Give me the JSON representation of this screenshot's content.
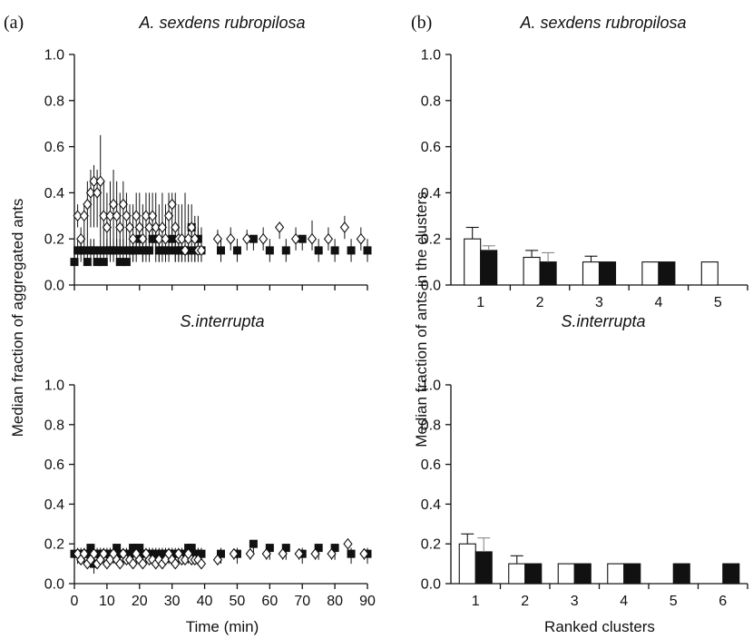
{
  "figure": {
    "panel_a_label": "(a)",
    "panel_b_label": "(b)",
    "a_ylabel": "Median fraction of aggregated ants",
    "a_xlabel": "Time (min)",
    "b_ylabel": "Median fraction of ants in the clusters",
    "b_xlabel": "Ranked clusters"
  },
  "chart_data": [
    {
      "id": "a-top",
      "type": "scatter",
      "title": "A. sexdens rubropilosa",
      "xlabel": "",
      "ylabel": "",
      "xlim": [
        0,
        90
      ],
      "ylim": [
        0,
        1.0
      ],
      "xticks": [
        "0",
        "10",
        "20",
        "30",
        "40",
        "50",
        "60",
        "70",
        "80",
        "90"
      ],
      "yticks": [
        "0.0",
        "0.2",
        "0.4",
        "0.6",
        "0.8",
        "1.0"
      ],
      "show_xtick_labels": false,
      "series": [
        {
          "marker": "open-diamond",
          "x": [
            1,
            2,
            3,
            4,
            5,
            6,
            7,
            8,
            9,
            10,
            11,
            12,
            13,
            14,
            15,
            16,
            17,
            18,
            19,
            20,
            21,
            22,
            23,
            24,
            25,
            26,
            27,
            28,
            29,
            30,
            31,
            32,
            33,
            34,
            35,
            36,
            37,
            38,
            39,
            44,
            48,
            53,
            58,
            63,
            68,
            73,
            78,
            83,
            88
          ],
          "y": [
            0.3,
            0.2,
            0.3,
            0.35,
            0.4,
            0.45,
            0.4,
            0.45,
            0.3,
            0.25,
            0.3,
            0.35,
            0.3,
            0.25,
            0.35,
            0.3,
            0.25,
            0.2,
            0.3,
            0.25,
            0.2,
            0.3,
            0.25,
            0.3,
            0.25,
            0.2,
            0.25,
            0.2,
            0.3,
            0.35,
            0.25,
            0.2,
            0.2,
            0.15,
            0.2,
            0.25,
            0.2,
            0.15,
            0.15,
            0.2,
            0.2,
            0.2,
            0.2,
            0.25,
            0.2,
            0.2,
            0.2,
            0.25,
            0.2
          ],
          "err_hi": [
            0.35,
            0.25,
            0.35,
            0.45,
            0.5,
            0.52,
            0.5,
            0.65,
            0.45,
            0.4,
            0.45,
            0.5,
            0.45,
            0.4,
            0.45,
            0.4,
            0.35,
            0.35,
            0.4,
            0.4,
            0.35,
            0.4,
            0.4,
            0.4,
            0.4,
            0.35,
            0.4,
            0.35,
            0.4,
            0.4,
            0.4,
            0.35,
            0.35,
            0.4,
            0.35,
            0.35,
            0.3,
            0.3,
            0.25,
            0.24,
            0.25,
            0.24,
            0.25,
            0.25,
            0.25,
            0.28,
            0.25,
            0.3,
            0.25
          ],
          "err_lo": [
            0.25,
            0.15,
            0.2,
            0.2,
            0.25,
            0.25,
            0.25,
            0.2,
            0.15,
            0.15,
            0.15,
            0.15,
            0.15,
            0.15,
            0.15,
            0.15,
            0.15,
            0.1,
            0.15,
            0.15,
            0.1,
            0.15,
            0.15,
            0.15,
            0.1,
            0.1,
            0.15,
            0.1,
            0.15,
            0.15,
            0.1,
            0.1,
            0.1,
            0.1,
            0.1,
            0.1,
            0.1,
            0.1,
            0.1,
            0.15,
            0.15,
            0.15,
            0.15,
            0.2,
            0.15,
            0.15,
            0.15,
            0.2,
            0.15
          ]
        },
        {
          "marker": "filled-square",
          "x": [
            0,
            1,
            2,
            3,
            4,
            5,
            6,
            7,
            8,
            9,
            10,
            11,
            12,
            13,
            14,
            15,
            16,
            17,
            18,
            19,
            20,
            21,
            22,
            23,
            24,
            25,
            26,
            27,
            28,
            29,
            30,
            31,
            32,
            33,
            34,
            35,
            36,
            37,
            38,
            39,
            45,
            50,
            55,
            60,
            65,
            70,
            75,
            80,
            85,
            90
          ],
          "y": [
            0.1,
            0.15,
            0.15,
            0.15,
            0.1,
            0.15,
            0.15,
            0.1,
            0.15,
            0.1,
            0.15,
            0.15,
            0.15,
            0.15,
            0.1,
            0.15,
            0.1,
            0.15,
            0.15,
            0.15,
            0.2,
            0.15,
            0.15,
            0.15,
            0.2,
            0.2,
            0.15,
            0.15,
            0.15,
            0.15,
            0.2,
            0.15,
            0.15,
            0.15,
            0.15,
            0.15,
            0.25,
            0.15,
            0.2,
            0.15,
            0.15,
            0.15,
            0.2,
            0.15,
            0.15,
            0.2,
            0.15,
            0.15,
            0.15,
            0.15
          ],
          "err_hi": [
            0.15,
            0.2,
            0.2,
            0.2,
            0.2,
            0.2,
            0.2,
            0.15,
            0.2,
            0.15,
            0.2,
            0.2,
            0.2,
            0.2,
            0.2,
            0.2,
            0.15,
            0.2,
            0.2,
            0.2,
            0.25,
            0.2,
            0.2,
            0.2,
            0.25,
            0.25,
            0.2,
            0.2,
            0.2,
            0.2,
            0.25,
            0.2,
            0.2,
            0.2,
            0.2,
            0.2,
            0.25,
            0.2,
            0.25,
            0.2,
            0.2,
            0.2,
            0.2,
            0.2,
            0.2,
            0.2,
            0.2,
            0.2,
            0.2,
            0.2
          ],
          "err_lo": [
            0.1,
            0.1,
            0.1,
            0.1,
            0.1,
            0.1,
            0.1,
            0.1,
            0.1,
            0.1,
            0.1,
            0.1,
            0.1,
            0.1,
            0.1,
            0.1,
            0.1,
            0.1,
            0.1,
            0.1,
            0.15,
            0.1,
            0.1,
            0.1,
            0.15,
            0.15,
            0.1,
            0.1,
            0.1,
            0.1,
            0.15,
            0.1,
            0.1,
            0.1,
            0.1,
            0.1,
            0.2,
            0.1,
            0.15,
            0.1,
            0.1,
            0.1,
            0.15,
            0.1,
            0.1,
            0.15,
            0.1,
            0.1,
            0.1,
            0.1
          ]
        }
      ]
    },
    {
      "id": "a-bottom",
      "type": "scatter",
      "title": "S.interrupta",
      "xlabel": "Time (min)",
      "ylabel": "",
      "xlim": [
        0,
        90
      ],
      "ylim": [
        0,
        1.0
      ],
      "xticks": [
        "0",
        "10",
        "20",
        "30",
        "40",
        "50",
        "60",
        "70",
        "80",
        "90"
      ],
      "yticks": [
        "0.0",
        "0.2",
        "0.4",
        "0.6",
        "0.8",
        "1.0"
      ],
      "show_xtick_labels": true,
      "series": [
        {
          "marker": "open-diamond",
          "x": [
            1,
            2,
            3,
            4,
            5,
            6,
            7,
            8,
            9,
            10,
            11,
            12,
            13,
            14,
            15,
            16,
            17,
            18,
            19,
            20,
            21,
            22,
            23,
            24,
            25,
            26,
            27,
            28,
            29,
            30,
            31,
            32,
            33,
            34,
            35,
            36,
            37,
            38,
            39,
            44,
            49,
            54,
            59,
            64,
            69,
            74,
            79,
            84,
            89
          ],
          "y": [
            0.15,
            0.12,
            0.15,
            0.1,
            0.12,
            0.15,
            0.1,
            0.12,
            0.15,
            0.1,
            0.12,
            0.15,
            0.12,
            0.1,
            0.15,
            0.12,
            0.12,
            0.1,
            0.15,
            0.12,
            0.1,
            0.15,
            0.12,
            0.12,
            0.1,
            0.12,
            0.1,
            0.12,
            0.15,
            0.12,
            0.1,
            0.15,
            0.12,
            0.12,
            0.15,
            0.12,
            0.12,
            0.12,
            0.1,
            0.12,
            0.15,
            0.15,
            0.15,
            0.15,
            0.15,
            0.15,
            0.15,
            0.2,
            0.15
          ],
          "err_hi": [
            0.17,
            0.15,
            0.17,
            0.15,
            0.15,
            0.17,
            0.15,
            0.15,
            0.17,
            0.15,
            0.15,
            0.17,
            0.15,
            0.15,
            0.17,
            0.15,
            0.15,
            0.15,
            0.17,
            0.15,
            0.15,
            0.17,
            0.15,
            0.15,
            0.15,
            0.15,
            0.15,
            0.15,
            0.17,
            0.15,
            0.15,
            0.17,
            0.15,
            0.15,
            0.17,
            0.15,
            0.15,
            0.15,
            0.15,
            0.15,
            0.17,
            0.17,
            0.17,
            0.17,
            0.17,
            0.17,
            0.17,
            0.2,
            0.17
          ],
          "err_lo": [
            0.1,
            0.1,
            0.1,
            0.08,
            0.1,
            0.1,
            0.08,
            0.1,
            0.1,
            0.08,
            0.1,
            0.1,
            0.1,
            0.08,
            0.1,
            0.1,
            0.1,
            0.08,
            0.1,
            0.1,
            0.08,
            0.1,
            0.1,
            0.1,
            0.08,
            0.1,
            0.08,
            0.1,
            0.1,
            0.1,
            0.08,
            0.1,
            0.1,
            0.1,
            0.1,
            0.1,
            0.1,
            0.1,
            0.08,
            0.1,
            0.12,
            0.12,
            0.12,
            0.12,
            0.12,
            0.12,
            0.12,
            0.15,
            0.12
          ]
        },
        {
          "marker": "filled-square",
          "x": [
            0,
            1,
            2,
            3,
            4,
            5,
            6,
            7,
            8,
            9,
            10,
            11,
            12,
            13,
            14,
            15,
            16,
            17,
            18,
            19,
            20,
            21,
            22,
            23,
            24,
            25,
            26,
            27,
            28,
            29,
            30,
            31,
            32,
            33,
            34,
            35,
            36,
            37,
            38,
            39,
            45,
            50,
            55,
            60,
            65,
            70,
            75,
            80,
            85,
            90
          ],
          "y": [
            0.15,
            0.15,
            0.15,
            0.15,
            0.15,
            0.18,
            0.1,
            0.15,
            0.15,
            0.15,
            0.15,
            0.15,
            0.15,
            0.18,
            0.15,
            0.15,
            0.15,
            0.15,
            0.18,
            0.18,
            0.18,
            0.15,
            0.15,
            0.15,
            0.15,
            0.15,
            0.15,
            0.15,
            0.15,
            0.15,
            0.15,
            0.15,
            0.15,
            0.15,
            0.15,
            0.18,
            0.18,
            0.15,
            0.15,
            0.15,
            0.15,
            0.15,
            0.2,
            0.18,
            0.18,
            0.15,
            0.18,
            0.18,
            0.15,
            0.15
          ],
          "err_hi": [
            0.18,
            0.18,
            0.18,
            0.18,
            0.18,
            0.2,
            0.15,
            0.18,
            0.18,
            0.18,
            0.18,
            0.18,
            0.18,
            0.2,
            0.18,
            0.18,
            0.18,
            0.18,
            0.2,
            0.2,
            0.2,
            0.18,
            0.18,
            0.18,
            0.18,
            0.18,
            0.18,
            0.18,
            0.18,
            0.18,
            0.18,
            0.18,
            0.18,
            0.18,
            0.18,
            0.2,
            0.2,
            0.18,
            0.18,
            0.18,
            0.18,
            0.18,
            0.2,
            0.2,
            0.2,
            0.18,
            0.2,
            0.2,
            0.18,
            0.18
          ],
          "err_lo": [
            0.1,
            0.1,
            0.1,
            0.1,
            0.1,
            0.12,
            0.05,
            0.1,
            0.1,
            0.1,
            0.1,
            0.1,
            0.1,
            0.12,
            0.1,
            0.1,
            0.1,
            0.1,
            0.12,
            0.12,
            0.12,
            0.1,
            0.1,
            0.1,
            0.1,
            0.1,
            0.1,
            0.1,
            0.1,
            0.1,
            0.1,
            0.1,
            0.1,
            0.1,
            0.1,
            0.12,
            0.12,
            0.1,
            0.1,
            0.1,
            0.1,
            0.1,
            0.15,
            0.12,
            0.12,
            0.1,
            0.12,
            0.12,
            0.1,
            0.1
          ]
        }
      ]
    },
    {
      "id": "b-top",
      "type": "bar",
      "title": "A. sexdens rubropilosa",
      "xlabel": "",
      "ylabel": "",
      "ylim": [
        0,
        1.0
      ],
      "yticks": [
        "0.0",
        "0.2",
        "0.4",
        "0.6",
        "0.8",
        "1.0"
      ],
      "categories": [
        "1",
        "2",
        "3",
        "4",
        "5"
      ],
      "series": [
        {
          "fill": "open",
          "values": [
            0.2,
            0.12,
            0.1,
            0.1,
            0.1
          ],
          "err": [
            0.05,
            0.03,
            0.025,
            0.0,
            0.0
          ]
        },
        {
          "fill": "filled",
          "values": [
            0.15,
            0.1,
            0.1,
            0.1,
            null
          ],
          "err": [
            0.02,
            0.04,
            0.0,
            0.0,
            null
          ]
        }
      ]
    },
    {
      "id": "b-bottom",
      "type": "bar",
      "title": "S.interrupta",
      "xlabel": "Ranked clusters",
      "ylabel": "",
      "ylim": [
        0,
        1.0
      ],
      "yticks": [
        "0.0",
        "0.2",
        "0.4",
        "0.6",
        "0.8",
        "1.0"
      ],
      "categories": [
        "1",
        "2",
        "3",
        "4",
        "5",
        "6"
      ],
      "series": [
        {
          "fill": "open",
          "values": [
            0.2,
            0.1,
            0.1,
            0.1,
            null,
            null
          ],
          "err": [
            0.05,
            0.04,
            0.0,
            0.0,
            null,
            null
          ]
        },
        {
          "fill": "filled",
          "values": [
            0.16,
            0.1,
            0.1,
            0.1,
            0.1,
            0.1
          ],
          "err": [
            0.07,
            0.0,
            0.0,
            0.0,
            0.0,
            0.0
          ]
        }
      ]
    }
  ]
}
